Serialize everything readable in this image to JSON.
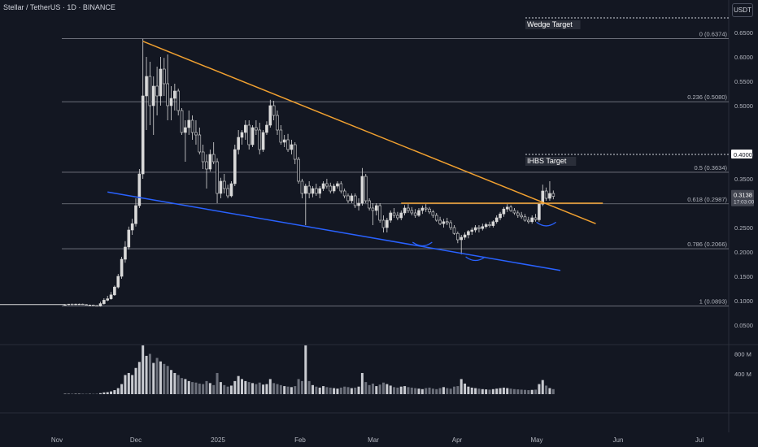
{
  "header": {
    "symbol": "Stellar / TetherUS · 1D · BINANCE",
    "currency": "USDT"
  },
  "colors": {
    "background": "#131722",
    "candle": "#d9d9d9",
    "fib_line": "#787b86",
    "wedge_upper": "#f0a030",
    "wedge_lower": "#2962ff",
    "neckline": "#f0a030",
    "shoulders": "#2962ff",
    "volume": "#9598a1"
  },
  "chart_data": {
    "type": "candlestick",
    "x_ticks": [
      "Nov",
      "Dec",
      "2025",
      "Feb",
      "Mar",
      "Apr",
      "May",
      "Jun",
      "Jul"
    ],
    "price_axis": {
      "ticks": [
        0.65,
        0.6,
        0.55,
        0.5,
        0.4,
        0.35,
        0.25,
        0.2,
        0.15,
        0.1,
        0.05
      ],
      "range": [
        0.05,
        0.69
      ]
    },
    "volume_axis": {
      "ticks": [
        "800 M",
        "400 M"
      ],
      "range_millions": [
        0,
        1000
      ]
    },
    "current_price": "0.3138",
    "countdown": "17:03:00",
    "highlighted_prices": [
      "0.4000"
    ],
    "fibonacci": [
      {
        "label": "0 (0.6374)",
        "value": 0.6374
      },
      {
        "label": "0.236 (0.5080)",
        "value": 0.508
      },
      {
        "label": "0.5 (0.3634)",
        "value": 0.3634
      },
      {
        "label": "0.618 (0.2987)",
        "value": 0.2987
      },
      {
        "label": "0.786 (0.2066)",
        "value": 0.2066
      },
      {
        "label": "1 (0.0893)",
        "value": 0.0893
      }
    ],
    "targets": [
      {
        "label": "Wedge Target",
        "value": 0.68
      },
      {
        "label": "IHBS Target",
        "value": 0.4
      }
    ],
    "candles": [
      [
        0.092,
        0.093,
        0.091,
        0.092
      ],
      [
        0.092,
        0.093,
        0.091,
        0.093
      ],
      [
        0.093,
        0.094,
        0.091,
        0.092
      ],
      [
        0.092,
        0.094,
        0.091,
        0.093
      ],
      [
        0.093,
        0.094,
        0.092,
        0.093
      ],
      [
        0.093,
        0.094,
        0.092,
        0.092
      ],
      [
        0.092,
        0.093,
        0.091,
        0.091
      ],
      [
        0.091,
        0.092,
        0.09,
        0.091
      ],
      [
        0.091,
        0.092,
        0.09,
        0.09
      ],
      [
        0.09,
        0.091,
        0.089,
        0.089
      ],
      [
        0.089,
        0.098,
        0.088,
        0.094
      ],
      [
        0.094,
        0.105,
        0.092,
        0.101
      ],
      [
        0.101,
        0.11,
        0.099,
        0.104
      ],
      [
        0.104,
        0.118,
        0.102,
        0.112
      ],
      [
        0.112,
        0.131,
        0.11,
        0.128
      ],
      [
        0.128,
        0.155,
        0.125,
        0.15
      ],
      [
        0.15,
        0.19,
        0.145,
        0.185
      ],
      [
        0.185,
        0.222,
        0.178,
        0.21
      ],
      [
        0.21,
        0.252,
        0.205,
        0.245
      ],
      [
        0.245,
        0.268,
        0.235,
        0.258
      ],
      [
        0.258,
        0.31,
        0.252,
        0.295
      ],
      [
        0.295,
        0.37,
        0.29,
        0.36
      ],
      [
        0.36,
        0.637,
        0.35,
        0.52
      ],
      [
        0.52,
        0.6,
        0.45,
        0.56
      ],
      [
        0.56,
        0.59,
        0.46,
        0.5
      ],
      [
        0.5,
        0.56,
        0.44,
        0.54
      ],
      [
        0.54,
        0.58,
        0.48,
        0.52
      ],
      [
        0.52,
        0.6,
        0.5,
        0.575
      ],
      [
        0.575,
        0.598,
        0.52,
        0.545
      ],
      [
        0.545,
        0.605,
        0.47,
        0.5
      ],
      [
        0.5,
        0.54,
        0.47,
        0.515
      ],
      [
        0.515,
        0.545,
        0.49,
        0.53
      ],
      [
        0.53,
        0.535,
        0.48,
        0.49
      ],
      [
        0.49,
        0.495,
        0.44,
        0.445
      ],
      [
        0.445,
        0.47,
        0.385,
        0.455
      ],
      [
        0.455,
        0.49,
        0.44,
        0.47
      ],
      [
        0.47,
        0.48,
        0.43,
        0.445
      ],
      [
        0.445,
        0.47,
        0.42,
        0.44
      ],
      [
        0.44,
        0.455,
        0.4,
        0.405
      ],
      [
        0.405,
        0.42,
        0.37,
        0.385
      ],
      [
        0.385,
        0.4,
        0.33,
        0.37
      ],
      [
        0.37,
        0.41,
        0.365,
        0.4
      ],
      [
        0.4,
        0.425,
        0.38,
        0.385
      ],
      [
        0.385,
        0.392,
        0.3,
        0.32
      ],
      [
        0.32,
        0.352,
        0.31,
        0.345
      ],
      [
        0.345,
        0.36,
        0.32,
        0.33
      ],
      [
        0.33,
        0.338,
        0.31,
        0.315
      ],
      [
        0.315,
        0.345,
        0.312,
        0.34
      ],
      [
        0.34,
        0.42,
        0.335,
        0.41
      ],
      [
        0.41,
        0.45,
        0.4,
        0.435
      ],
      [
        0.435,
        0.45,
        0.42,
        0.445
      ],
      [
        0.445,
        0.47,
        0.43,
        0.46
      ],
      [
        0.46,
        0.47,
        0.41,
        0.42
      ],
      [
        0.42,
        0.46,
        0.415,
        0.455
      ],
      [
        0.455,
        0.47,
        0.44,
        0.45
      ],
      [
        0.45,
        0.465,
        0.4,
        0.41
      ],
      [
        0.41,
        0.45,
        0.405,
        0.445
      ],
      [
        0.445,
        0.468,
        0.44,
        0.46
      ],
      [
        0.46,
        0.512,
        0.455,
        0.5
      ],
      [
        0.5,
        0.51,
        0.47,
        0.48
      ],
      [
        0.48,
        0.49,
        0.44,
        0.45
      ],
      [
        0.45,
        0.46,
        0.42,
        0.425
      ],
      [
        0.425,
        0.44,
        0.415,
        0.43
      ],
      [
        0.43,
        0.442,
        0.405,
        0.41
      ],
      [
        0.41,
        0.43,
        0.4,
        0.42
      ],
      [
        0.42,
        0.425,
        0.38,
        0.39
      ],
      [
        0.39,
        0.395,
        0.34,
        0.345
      ],
      [
        0.345,
        0.35,
        0.31,
        0.32
      ],
      [
        0.32,
        0.34,
        0.255,
        0.335
      ],
      [
        0.335,
        0.345,
        0.31,
        0.32
      ],
      [
        0.32,
        0.335,
        0.312,
        0.33
      ],
      [
        0.33,
        0.34,
        0.315,
        0.32
      ],
      [
        0.32,
        0.335,
        0.31,
        0.33
      ],
      [
        0.33,
        0.345,
        0.325,
        0.34
      ],
      [
        0.34,
        0.35,
        0.33,
        0.335
      ],
      [
        0.335,
        0.342,
        0.32,
        0.325
      ],
      [
        0.325,
        0.34,
        0.32,
        0.335
      ],
      [
        0.335,
        0.345,
        0.33,
        0.34
      ],
      [
        0.34,
        0.345,
        0.32,
        0.325
      ],
      [
        0.325,
        0.33,
        0.31,
        0.315
      ],
      [
        0.315,
        0.32,
        0.3,
        0.305
      ],
      [
        0.305,
        0.32,
        0.3,
        0.315
      ],
      [
        0.315,
        0.32,
        0.29,
        0.295
      ],
      [
        0.295,
        0.31,
        0.285,
        0.3
      ],
      [
        0.3,
        0.372,
        0.295,
        0.355
      ],
      [
        0.355,
        0.36,
        0.3,
        0.305
      ],
      [
        0.305,
        0.31,
        0.285,
        0.29
      ],
      [
        0.29,
        0.3,
        0.255,
        0.285
      ],
      [
        0.285,
        0.3,
        0.275,
        0.295
      ],
      [
        0.295,
        0.3,
        0.26,
        0.265
      ],
      [
        0.265,
        0.275,
        0.24,
        0.25
      ],
      [
        0.25,
        0.27,
        0.24,
        0.265
      ],
      [
        0.265,
        0.285,
        0.26,
        0.28
      ],
      [
        0.28,
        0.29,
        0.27,
        0.275
      ],
      [
        0.275,
        0.282,
        0.265,
        0.27
      ],
      [
        0.27,
        0.285,
        0.265,
        0.28
      ],
      [
        0.28,
        0.296,
        0.275,
        0.29
      ],
      [
        0.29,
        0.298,
        0.28,
        0.285
      ],
      [
        0.285,
        0.292,
        0.275,
        0.28
      ],
      [
        0.28,
        0.288,
        0.27,
        0.275
      ],
      [
        0.275,
        0.29,
        0.272,
        0.285
      ],
      [
        0.285,
        0.295,
        0.278,
        0.29
      ],
      [
        0.29,
        0.298,
        0.282,
        0.288
      ],
      [
        0.288,
        0.292,
        0.278,
        0.282
      ],
      [
        0.282,
        0.286,
        0.27,
        0.275
      ],
      [
        0.275,
        0.28,
        0.262,
        0.265
      ],
      [
        0.265,
        0.272,
        0.255,
        0.258
      ],
      [
        0.258,
        0.268,
        0.25,
        0.262
      ],
      [
        0.262,
        0.27,
        0.255,
        0.26
      ],
      [
        0.26,
        0.265,
        0.245,
        0.25
      ],
      [
        0.25,
        0.255,
        0.235,
        0.238
      ],
      [
        0.238,
        0.242,
        0.218,
        0.225
      ],
      [
        0.225,
        0.235,
        0.195,
        0.23
      ],
      [
        0.23,
        0.24,
        0.225,
        0.235
      ],
      [
        0.235,
        0.245,
        0.228,
        0.242
      ],
      [
        0.242,
        0.25,
        0.235,
        0.245
      ],
      [
        0.245,
        0.255,
        0.24,
        0.25
      ],
      [
        0.25,
        0.255,
        0.24,
        0.248
      ],
      [
        0.248,
        0.258,
        0.244,
        0.252
      ],
      [
        0.252,
        0.26,
        0.248,
        0.256
      ],
      [
        0.256,
        0.262,
        0.25,
        0.254
      ],
      [
        0.254,
        0.265,
        0.25,
        0.262
      ],
      [
        0.262,
        0.275,
        0.258,
        0.27
      ],
      [
        0.27,
        0.282,
        0.265,
        0.278
      ],
      [
        0.278,
        0.292,
        0.272,
        0.288
      ],
      [
        0.288,
        0.298,
        0.282,
        0.292
      ],
      [
        0.292,
        0.296,
        0.282,
        0.285
      ],
      [
        0.285,
        0.29,
        0.276,
        0.28
      ],
      [
        0.28,
        0.285,
        0.27,
        0.275
      ],
      [
        0.275,
        0.282,
        0.268,
        0.272
      ],
      [
        0.272,
        0.278,
        0.262,
        0.265
      ],
      [
        0.265,
        0.272,
        0.258,
        0.262
      ],
      [
        0.262,
        0.275,
        0.258,
        0.27
      ],
      [
        0.27,
        0.278,
        0.262,
        0.266
      ],
      [
        0.266,
        0.3,
        0.262,
        0.298
      ],
      [
        0.298,
        0.338,
        0.294,
        0.325
      ],
      [
        0.325,
        0.332,
        0.305,
        0.31
      ],
      [
        0.31,
        0.345,
        0.305,
        0.32
      ],
      [
        0.32,
        0.326,
        0.308,
        0.314
      ]
    ],
    "volumes_millions": [
      8,
      7,
      9,
      8,
      8,
      9,
      7,
      6,
      7,
      9,
      20,
      35,
      40,
      55,
      80,
      120,
      200,
      380,
      420,
      380,
      520,
      640,
      980,
      760,
      800,
      620,
      720,
      650,
      600,
      560,
      480,
      420,
      380,
      320,
      300,
      260,
      240,
      230,
      210,
      200,
      260,
      220,
      180,
      420,
      240,
      180,
      150,
      170,
      260,
      360,
      300,
      260,
      240,
      220,
      200,
      230,
      190,
      200,
      300,
      220,
      200,
      180,
      160,
      150,
      140,
      160,
      300,
      260,
      980,
      260,
      180,
      150,
      130,
      160,
      140,
      130,
      120,
      110,
      130,
      150,
      140,
      120,
      130,
      150,
      420,
      240,
      180,
      210,
      160,
      190,
      230,
      200,
      170,
      140,
      130,
      150,
      160,
      140,
      130,
      120,
      110,
      100,
      120,
      130,
      110,
      100,
      120,
      140,
      120,
      110,
      150,
      160,
      300,
      210,
      150,
      130,
      120,
      110,
      100,
      95,
      90,
      100,
      110,
      120,
      130,
      120,
      110,
      100,
      95,
      90,
      85,
      80,
      85,
      90,
      200,
      280,
      170,
      120,
      100
    ],
    "drawings": {
      "wedge_upper": {
        "from": [
          22,
          0.632
        ],
        "to": [
          150,
          0.258
        ]
      },
      "wedge_lower": {
        "from": [
          12,
          0.323
        ],
        "to": [
          140,
          0.162
        ]
      },
      "neckline": {
        "from": [
          95,
          0.3
        ],
        "to": [
          152,
          0.3
        ]
      },
      "inverse_head_and_shoulders_marks": [
        {
          "index": 101,
          "value": 0.215
        },
        {
          "index": 116,
          "value": 0.185
        },
        {
          "index": 136,
          "value": 0.256
        }
      ]
    }
  }
}
